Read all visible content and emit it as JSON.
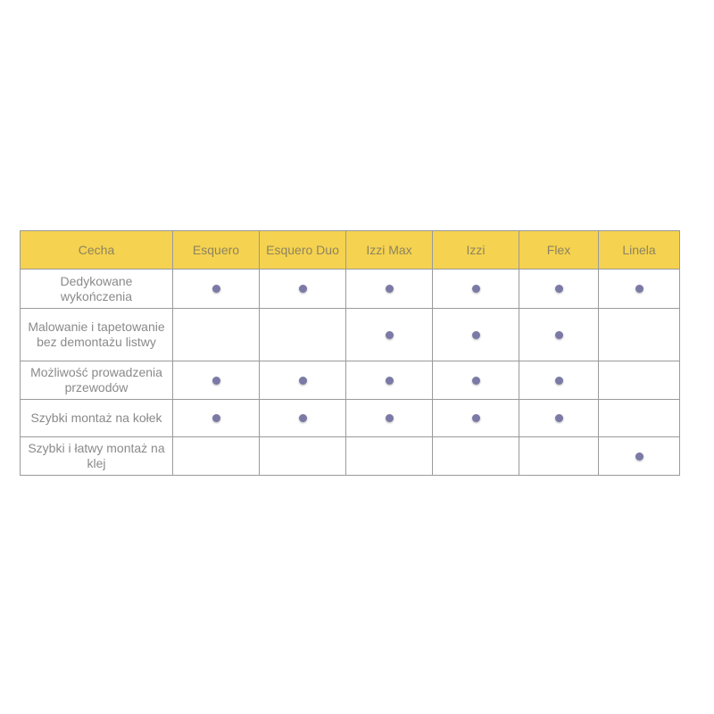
{
  "colors": {
    "header_bg": "#f5d24f",
    "dot": "#7b79a6"
  },
  "headers": [
    "Cecha",
    "Esquero",
    "Esquero Duo",
    "Izzi Max",
    "Izzi",
    "Flex",
    "Linela"
  ],
  "rows": [
    {
      "feature": "Dedykowane wykończenia",
      "marks": [
        true,
        true,
        true,
        true,
        true,
        true
      ]
    },
    {
      "feature": "Malowanie i tapetowanie bez demontażu listwy",
      "marks": [
        false,
        false,
        true,
        true,
        true,
        false
      ]
    },
    {
      "feature": "Możliwość prowadzenia przewodów",
      "marks": [
        true,
        true,
        true,
        true,
        true,
        false
      ]
    },
    {
      "feature": "Szybki montaż na kołek",
      "marks": [
        true,
        true,
        true,
        true,
        true,
        false
      ]
    },
    {
      "feature": "Szybki i łatwy montaż na klej",
      "marks": [
        false,
        false,
        false,
        false,
        false,
        true
      ]
    }
  ]
}
